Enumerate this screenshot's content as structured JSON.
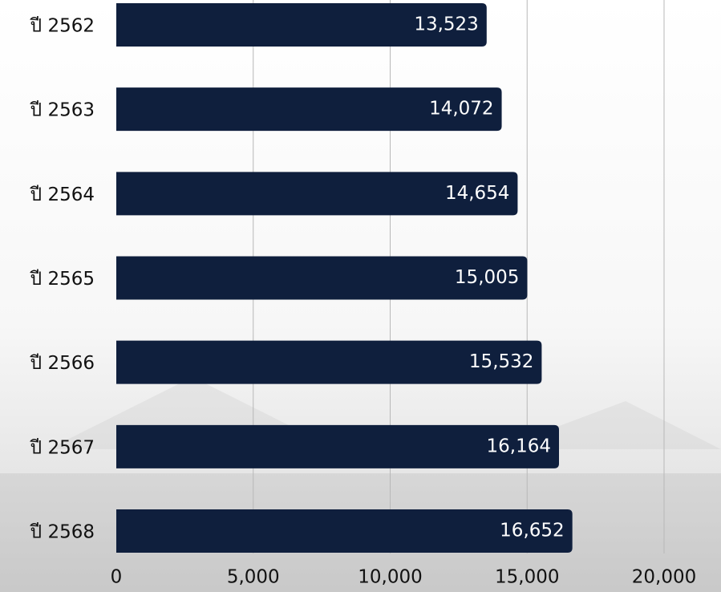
{
  "chart_data": {
    "type": "bar",
    "orientation": "horizontal",
    "categories": [
      "ปี 2562",
      "ปี 2563",
      "ปี 2564",
      "ปี 2565",
      "ปี 2566",
      "ปี 2567",
      "ปี 2568"
    ],
    "values": [
      13523,
      14072,
      14654,
      15005,
      15532,
      16164,
      16652
    ],
    "value_labels": [
      "13,523",
      "14,072",
      "14,654",
      "15,005",
      "15,532",
      "16,164",
      "16,652"
    ],
    "color": "#0f1f3d",
    "xlim": [
      0,
      20000
    ],
    "xticks": [
      0,
      {
        "value": 5000,
        "label": "5,000"
      },
      {
        "value": 10000,
        "label": "10,000"
      },
      {
        "value": 15000,
        "label": "15,000"
      },
      {
        "value": 20000,
        "label": "20,000"
      }
    ],
    "grid": true
  }
}
